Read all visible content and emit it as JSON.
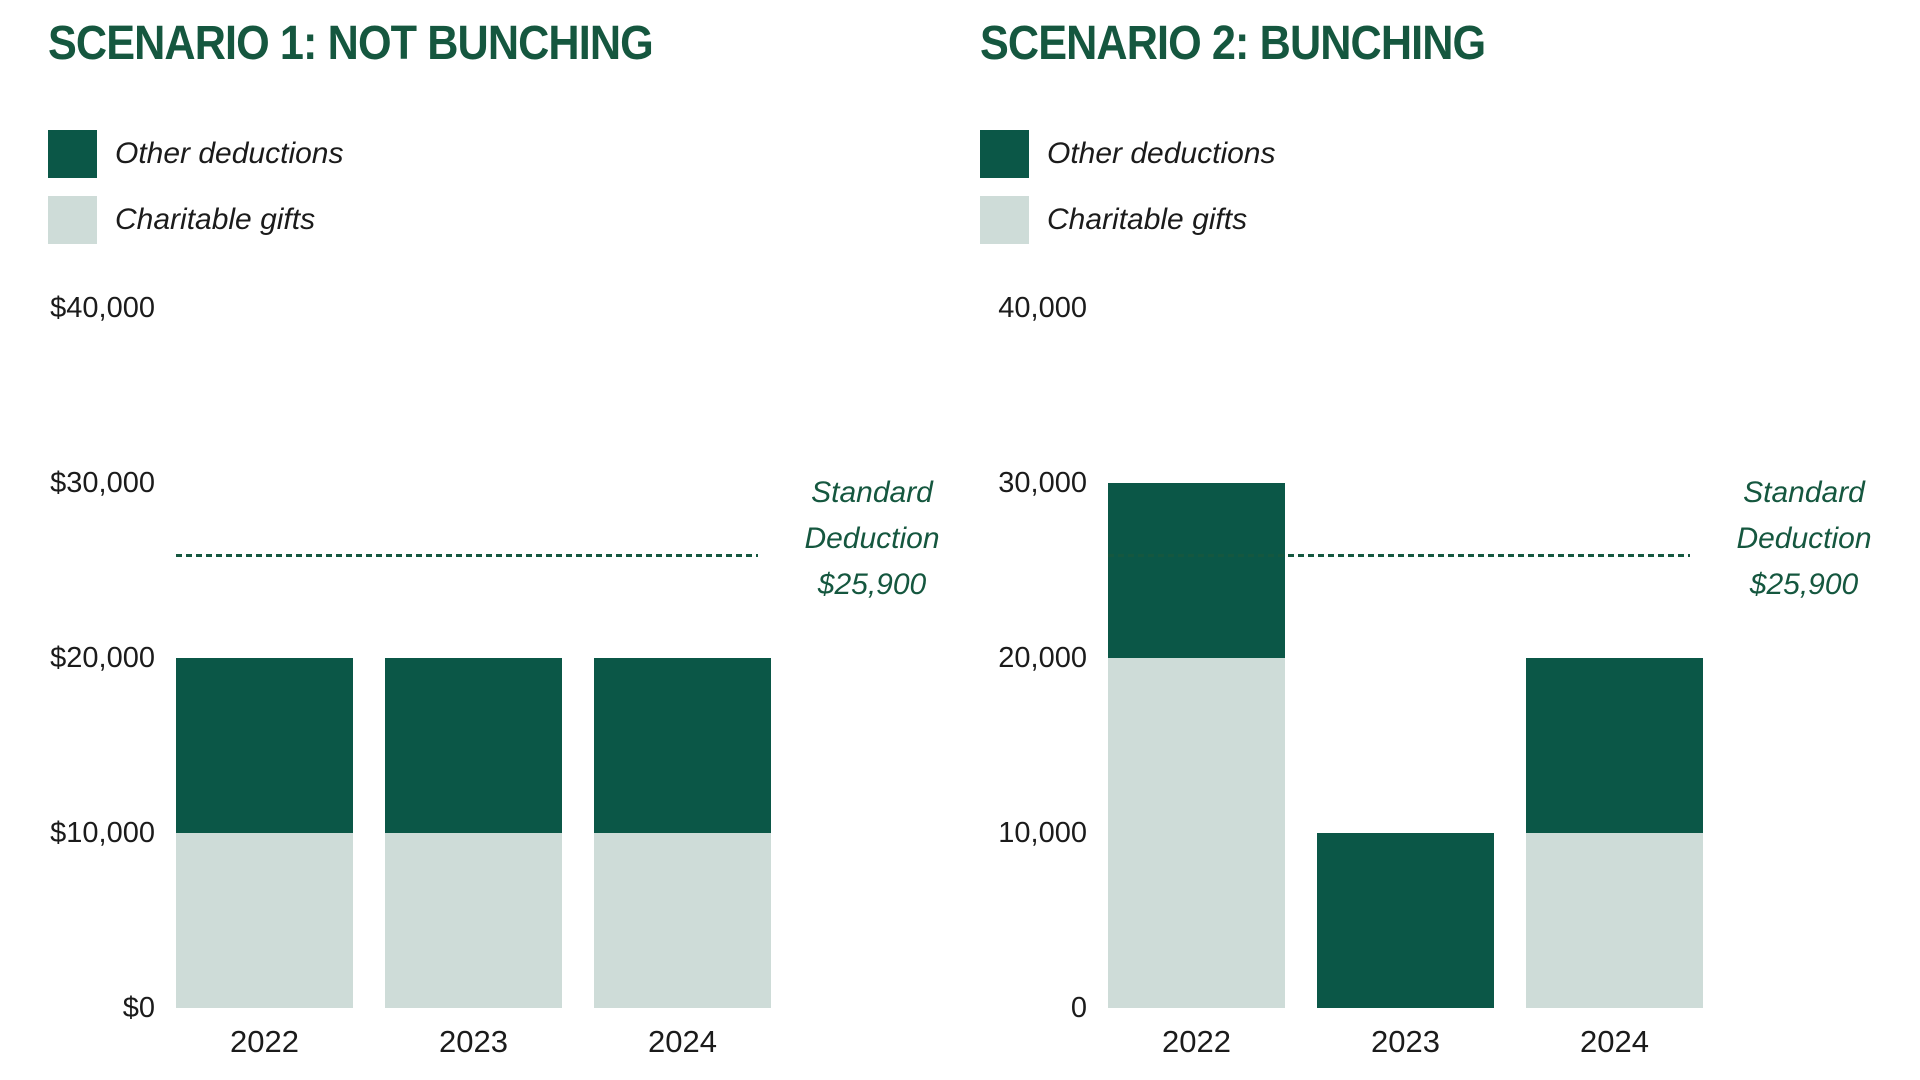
{
  "colors": {
    "dark_green": "#0B5747",
    "light_green": "#CEDCD8",
    "accent_green": "#15573F",
    "text_dark": "#1B1B1B",
    "background": "#FFFFFF"
  },
  "chart_data": [
    {
      "type": "bar",
      "stacked": true,
      "title": "SCENARIO 1: NOT BUNCHING",
      "legend": [
        {
          "label": "Other deductions",
          "color": "#0B5747"
        },
        {
          "label": "Charitable gifts",
          "color": "#CEDCD8"
        }
      ],
      "categories": [
        "2022",
        "2023",
        "2024"
      ],
      "series": [
        {
          "name": "Charitable gifts",
          "color": "#CEDCD8",
          "values": [
            10000,
            10000,
            10000
          ]
        },
        {
          "name": "Other deductions",
          "color": "#0B5747",
          "values": [
            10000,
            10000,
            10000
          ]
        }
      ],
      "ylim": [
        0,
        40000
      ],
      "yticks": [
        {
          "label": "$40,000",
          "value": 40000
        },
        {
          "label": "$30,000",
          "value": 30000
        },
        {
          "label": "$20,000",
          "value": 20000
        },
        {
          "label": "$10,000",
          "value": 10000
        },
        {
          "label": "$0",
          "value": 0
        }
      ],
      "grid": false,
      "legend_position": "top-left",
      "reference_line": {
        "value": 25900,
        "label": "Standard Deduction $25,900",
        "color": "#15573F"
      }
    },
    {
      "type": "bar",
      "stacked": true,
      "title": "SCENARIO 2: BUNCHING",
      "legend": [
        {
          "label": "Other deductions",
          "color": "#0B5747"
        },
        {
          "label": "Charitable gifts",
          "color": "#CEDCD8"
        }
      ],
      "categories": [
        "2022",
        "2023",
        "2024"
      ],
      "series": [
        {
          "name": "Charitable gifts",
          "color": "#CEDCD8",
          "values": [
            20000,
            0,
            10000
          ]
        },
        {
          "name": "Other deductions",
          "color": "#0B5747",
          "values": [
            10000,
            10000,
            10000
          ]
        }
      ],
      "ylim": [
        0,
        40000
      ],
      "yticks": [
        {
          "label": "40,000",
          "value": 40000
        },
        {
          "label": "30,000",
          "value": 30000
        },
        {
          "label": "20,000",
          "value": 20000
        },
        {
          "label": "10,000",
          "value": 10000
        },
        {
          "label": "0",
          "value": 0
        }
      ],
      "grid": false,
      "legend_position": "top-left",
      "reference_line": {
        "value": 25900,
        "label": "Standard Deduction $25,900",
        "color": "#15573F"
      }
    }
  ]
}
